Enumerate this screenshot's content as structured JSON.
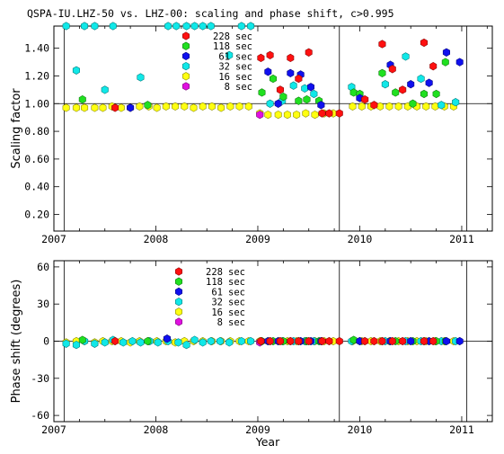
{
  "title": "QSPA-IU.LHZ-50 vs. LHZ-00: scaling and phase shift, c>0.995",
  "colors": {
    "228 sec": "#ff1010",
    "118 sec": "#20e020",
    "61 sec": "#1010ee",
    "32 sec": "#10e8e8",
    "16 sec": "#ffff10",
    "8 sec": "#e010e0"
  },
  "chart_data": [
    {
      "type": "scatter",
      "ylabel": "Scaling factor",
      "xlabel": "",
      "xlim": [
        2007.0,
        2011.3
      ],
      "ylim": [
        0.08,
        1.56
      ],
      "x_ticks": [
        "2007",
        "2008",
        "2009",
        "2010",
        "2011"
      ],
      "y_ticks": [
        "0.20",
        "0.40",
        "0.60",
        "0.80",
        "1.00",
        "1.20",
        "1.40"
      ],
      "reference_line": 1.0,
      "vertical_lines": [
        2007.1,
        2009.8,
        2011.05
      ],
      "legend": [
        "228 sec",
        "118 sec",
        "61 sec",
        "32 sec",
        "16 sec",
        "8 sec"
      ],
      "legend_position": "top-center",
      "series": [
        {
          "name": "16 sec",
          "points": [
            [
              2007.12,
              0.97
            ],
            [
              2007.22,
              0.97
            ],
            [
              2007.3,
              0.97
            ],
            [
              2007.4,
              0.97
            ],
            [
              2007.48,
              0.97
            ],
            [
              2007.57,
              0.98
            ],
            [
              2007.66,
              0.97
            ],
            [
              2007.75,
              0.97
            ],
            [
              2007.84,
              0.98
            ],
            [
              2007.93,
              0.98
            ],
            [
              2008.01,
              0.97
            ],
            [
              2008.1,
              0.98
            ],
            [
              2008.19,
              0.98
            ],
            [
              2008.28,
              0.98
            ],
            [
              2008.37,
              0.97
            ],
            [
              2008.46,
              0.98
            ],
            [
              2008.55,
              0.98
            ],
            [
              2008.64,
              0.97
            ],
            [
              2008.73,
              0.98
            ],
            [
              2008.82,
              0.98
            ],
            [
              2008.91,
              0.98
            ],
            [
              2009.02,
              0.93
            ],
            [
              2009.1,
              0.92
            ],
            [
              2009.2,
              0.92
            ],
            [
              2009.29,
              0.92
            ],
            [
              2009.38,
              0.92
            ],
            [
              2009.47,
              0.93
            ],
            [
              2009.56,
              0.92
            ],
            [
              2009.65,
              0.93
            ],
            [
              2009.74,
              0.93
            ],
            [
              2009.93,
              0.98
            ],
            [
              2010.02,
              0.98
            ],
            [
              2010.11,
              0.98
            ],
            [
              2010.2,
              0.98
            ],
            [
              2010.29,
              0.98
            ],
            [
              2010.38,
              0.98
            ],
            [
              2010.47,
              0.98
            ],
            [
              2010.56,
              0.98
            ],
            [
              2010.65,
              0.98
            ],
            [
              2010.74,
              0.98
            ],
            [
              2010.83,
              0.98
            ],
            [
              2010.92,
              0.98
            ]
          ]
        },
        {
          "name": "8 sec",
          "points": [
            [
              2009.02,
              0.92
            ]
          ]
        },
        {
          "name": "32 sec",
          "points": [
            [
              2007.12,
              1.56
            ],
            [
              2007.22,
              1.24
            ],
            [
              2007.3,
              1.56
            ],
            [
              2007.4,
              1.56
            ],
            [
              2007.5,
              1.1
            ],
            [
              2007.58,
              1.56
            ],
            [
              2007.85,
              1.19
            ],
            [
              2008.12,
              1.56
            ],
            [
              2008.2,
              1.56
            ],
            [
              2008.3,
              1.56
            ],
            [
              2008.38,
              1.56
            ],
            [
              2008.46,
              1.56
            ],
            [
              2008.54,
              1.56
            ],
            [
              2008.72,
              1.35
            ],
            [
              2008.84,
              1.56
            ],
            [
              2008.93,
              1.56
            ],
            [
              2009.12,
              1.0
            ],
            [
              2009.24,
              1.02
            ],
            [
              2009.35,
              1.13
            ],
            [
              2009.46,
              1.11
            ],
            [
              2009.55,
              1.07
            ],
            [
              2009.92,
              1.12
            ],
            [
              2010.25,
              1.14
            ],
            [
              2010.45,
              1.34
            ],
            [
              2010.6,
              1.18
            ],
            [
              2010.8,
              0.99
            ],
            [
              2010.94,
              1.01
            ]
          ]
        },
        {
          "name": "118 sec",
          "points": [
            [
              2007.28,
              1.03
            ],
            [
              2007.92,
              0.99
            ],
            [
              2009.04,
              1.08
            ],
            [
              2009.15,
              1.18
            ],
            [
              2009.25,
              1.05
            ],
            [
              2009.4,
              1.02
            ],
            [
              2009.48,
              1.03
            ],
            [
              2009.6,
              1.02
            ],
            [
              2009.94,
              1.08
            ],
            [
              2010.0,
              1.07
            ],
            [
              2010.22,
              1.22
            ],
            [
              2010.35,
              1.08
            ],
            [
              2010.52,
              1.0
            ],
            [
              2010.63,
              1.07
            ],
            [
              2010.75,
              1.07
            ],
            [
              2010.84,
              1.3
            ]
          ]
        },
        {
          "name": "61 sec",
          "points": [
            [
              2007.75,
              0.97
            ],
            [
              2009.1,
              1.23
            ],
            [
              2009.2,
              1.0
            ],
            [
              2009.32,
              1.22
            ],
            [
              2009.42,
              1.21
            ],
            [
              2009.52,
              1.12
            ],
            [
              2009.62,
              0.99
            ],
            [
              2010.0,
              1.04
            ],
            [
              2010.3,
              1.28
            ],
            [
              2010.5,
              1.14
            ],
            [
              2010.68,
              1.15
            ],
            [
              2010.85,
              1.37
            ],
            [
              2010.98,
              1.3
            ]
          ]
        },
        {
          "name": "228 sec",
          "points": [
            [
              2007.6,
              0.97
            ],
            [
              2009.03,
              1.33
            ],
            [
              2009.12,
              1.35
            ],
            [
              2009.22,
              1.1
            ],
            [
              2009.32,
              1.33
            ],
            [
              2009.4,
              1.18
            ],
            [
              2009.5,
              1.37
            ],
            [
              2009.63,
              0.93
            ],
            [
              2009.7,
              0.93
            ],
            [
              2009.8,
              0.93
            ],
            [
              2010.05,
              1.03
            ],
            [
              2010.14,
              0.99
            ],
            [
              2010.22,
              1.43
            ],
            [
              2010.32,
              1.25
            ],
            [
              2010.42,
              1.1
            ],
            [
              2010.63,
              1.44
            ],
            [
              2010.72,
              1.27
            ]
          ]
        }
      ]
    },
    {
      "type": "scatter",
      "ylabel": "Phase shift (degrees)",
      "xlabel": "Year",
      "xlim": [
        2007.0,
        2011.3
      ],
      "ylim": [
        -65,
        65
      ],
      "x_ticks": [
        "2007",
        "2008",
        "2009",
        "2010",
        "2011"
      ],
      "y_ticks": [
        "-60",
        "-30",
        "0",
        "30",
        "60"
      ],
      "reference_line": 0,
      "vertical_lines": [
        2007.1,
        2009.8,
        2011.05
      ],
      "legend": [
        "228 sec",
        "118 sec",
        "61 sec",
        "32 sec",
        "16 sec",
        "8 sec"
      ],
      "legend_position": "top-center",
      "series": [
        {
          "name": "16 sec",
          "points": [
            [
              2007.12,
              -1
            ],
            [
              2007.22,
              0
            ],
            [
              2007.3,
              0
            ],
            [
              2007.4,
              -1
            ],
            [
              2007.48,
              0
            ],
            [
              2007.57,
              0
            ],
            [
              2007.66,
              0
            ],
            [
              2007.75,
              -1
            ],
            [
              2007.84,
              0
            ],
            [
              2007.93,
              0
            ],
            [
              2008.01,
              0
            ],
            [
              2008.1,
              0
            ],
            [
              2008.19,
              -1
            ],
            [
              2008.28,
              0
            ],
            [
              2008.37,
              0
            ],
            [
              2008.46,
              0
            ],
            [
              2008.55,
              0
            ],
            [
              2008.64,
              0
            ],
            [
              2008.73,
              0
            ],
            [
              2008.82,
              0
            ],
            [
              2008.91,
              0
            ],
            [
              2009.02,
              0
            ],
            [
              2009.1,
              0
            ],
            [
              2009.2,
              0
            ],
            [
              2009.29,
              0
            ],
            [
              2009.38,
              0
            ],
            [
              2009.47,
              0
            ],
            [
              2009.56,
              0
            ],
            [
              2009.65,
              0
            ],
            [
              2009.74,
              0
            ],
            [
              2009.93,
              0
            ],
            [
              2010.02,
              0
            ],
            [
              2010.11,
              0
            ],
            [
              2010.2,
              0
            ],
            [
              2010.29,
              0
            ],
            [
              2010.38,
              0
            ],
            [
              2010.47,
              0
            ],
            [
              2010.56,
              0
            ],
            [
              2010.65,
              0
            ],
            [
              2010.74,
              0
            ],
            [
              2010.83,
              0
            ],
            [
              2010.92,
              0
            ]
          ]
        },
        {
          "name": "8 sec",
          "points": [
            [
              2009.02,
              -1
            ]
          ]
        },
        {
          "name": "32 sec",
          "points": [
            [
              2007.12,
              -2
            ],
            [
              2007.22,
              -3
            ],
            [
              2007.3,
              0
            ],
            [
              2007.4,
              -2
            ],
            [
              2007.5,
              -1
            ],
            [
              2007.58,
              1
            ],
            [
              2007.68,
              -1
            ],
            [
              2007.77,
              0
            ],
            [
              2007.85,
              -1
            ],
            [
              2007.94,
              0
            ],
            [
              2008.02,
              -1
            ],
            [
              2008.12,
              0
            ],
            [
              2008.22,
              -1
            ],
            [
              2008.3,
              -3
            ],
            [
              2008.38,
              1
            ],
            [
              2008.46,
              -1
            ],
            [
              2008.54,
              0
            ],
            [
              2008.63,
              0
            ],
            [
              2008.72,
              -1
            ],
            [
              2008.84,
              0
            ],
            [
              2008.93,
              0
            ],
            [
              2009.12,
              0
            ],
            [
              2009.24,
              0
            ],
            [
              2009.35,
              0
            ],
            [
              2009.46,
              0
            ],
            [
              2009.55,
              0
            ],
            [
              2009.92,
              0
            ],
            [
              2010.25,
              0
            ],
            [
              2010.45,
              0
            ],
            [
              2010.6,
              0
            ],
            [
              2010.8,
              0
            ],
            [
              2010.94,
              0
            ]
          ]
        },
        {
          "name": "118 sec",
          "points": [
            [
              2007.28,
              1
            ],
            [
              2007.92,
              0
            ],
            [
              2009.04,
              0
            ],
            [
              2009.15,
              0
            ],
            [
              2009.25,
              0
            ],
            [
              2009.4,
              0
            ],
            [
              2009.48,
              0
            ],
            [
              2009.6,
              0
            ],
            [
              2009.94,
              1
            ],
            [
              2010.0,
              0
            ],
            [
              2010.22,
              0
            ],
            [
              2010.35,
              0
            ],
            [
              2010.52,
              0
            ],
            [
              2010.63,
              0
            ],
            [
              2010.75,
              0
            ],
            [
              2010.84,
              0
            ]
          ]
        },
        {
          "name": "61 sec",
          "points": [
            [
              2008.11,
              2
            ],
            [
              2009.1,
              0
            ],
            [
              2009.2,
              0
            ],
            [
              2009.32,
              0
            ],
            [
              2009.42,
              0
            ],
            [
              2009.52,
              0
            ],
            [
              2009.62,
              0
            ],
            [
              2010.0,
              0
            ],
            [
              2010.3,
              0
            ],
            [
              2010.5,
              0
            ],
            [
              2010.68,
              0
            ],
            [
              2010.85,
              0
            ],
            [
              2010.98,
              0
            ]
          ]
        },
        {
          "name": "228 sec",
          "points": [
            [
              2007.6,
              0
            ],
            [
              2009.03,
              0
            ],
            [
              2009.12,
              0
            ],
            [
              2009.22,
              0
            ],
            [
              2009.32,
              0
            ],
            [
              2009.4,
              0
            ],
            [
              2009.5,
              0
            ],
            [
              2009.63,
              0
            ],
            [
              2009.7,
              0
            ],
            [
              2009.8,
              0
            ],
            [
              2010.05,
              0
            ],
            [
              2010.14,
              0
            ],
            [
              2010.22,
              0
            ],
            [
              2010.32,
              0
            ],
            [
              2010.42,
              0
            ],
            [
              2010.63,
              0
            ],
            [
              2010.72,
              0
            ]
          ]
        }
      ]
    }
  ]
}
